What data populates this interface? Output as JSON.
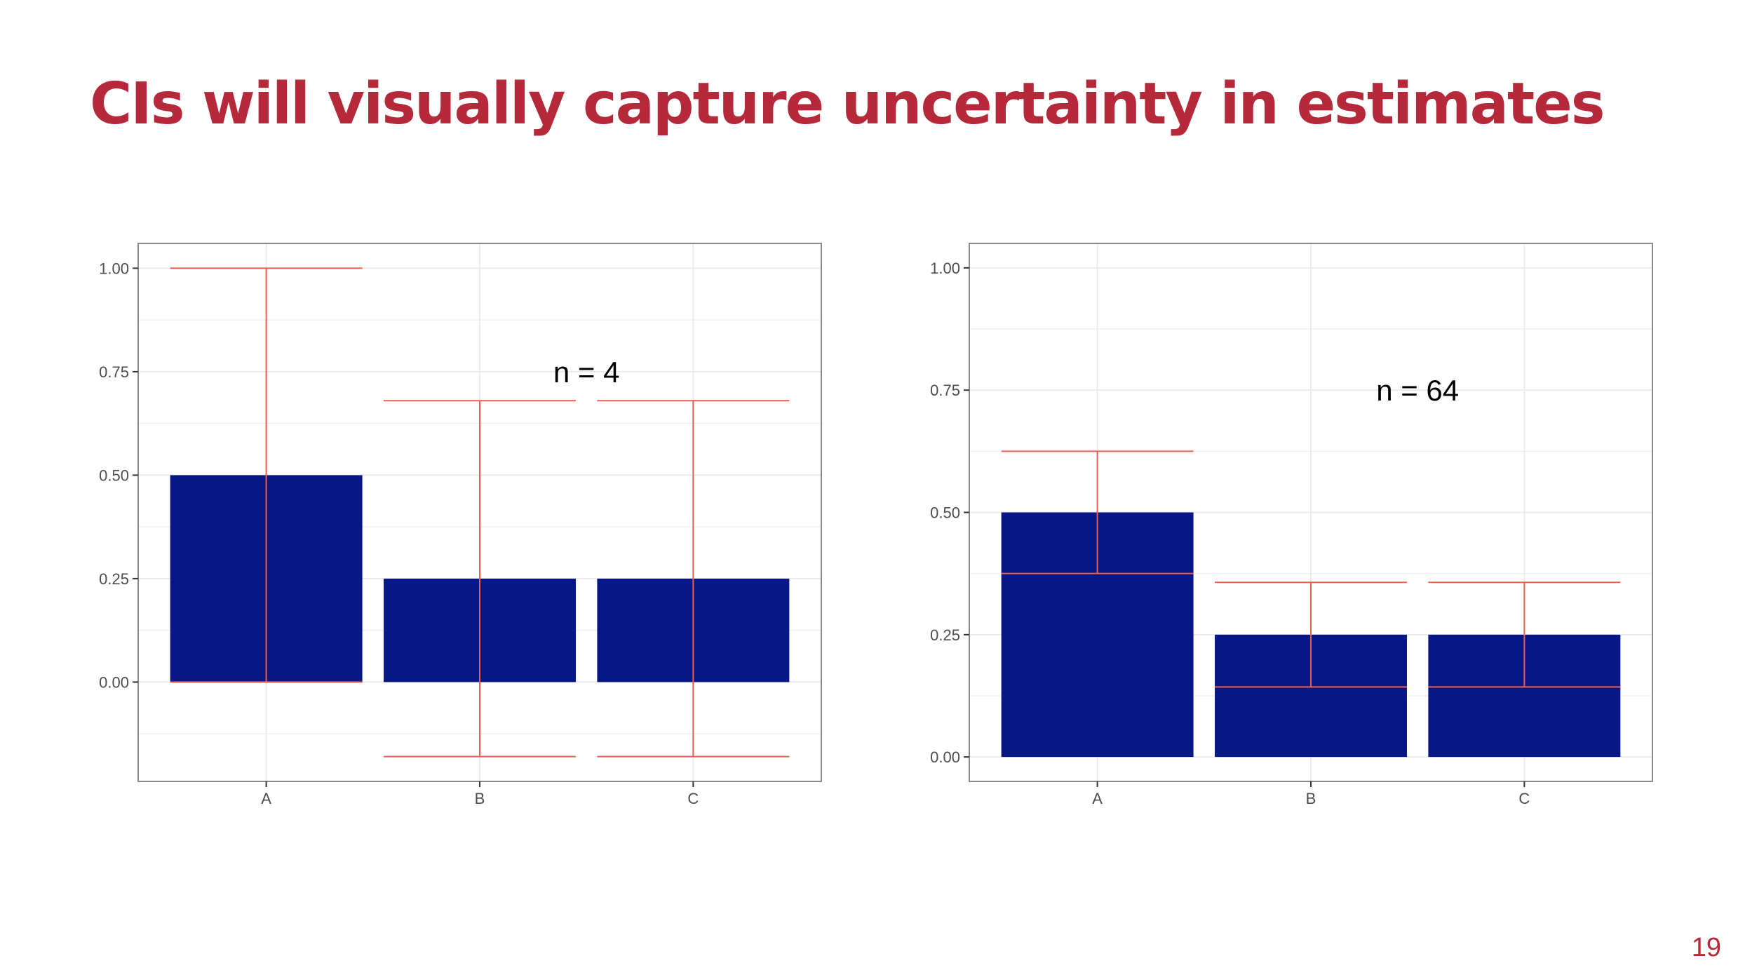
{
  "slide": {
    "title": "CIs will visually capture uncertainty in estimates",
    "page_number": "19"
  },
  "colors": {
    "title": "#b5293a",
    "bar_fill": "#081787",
    "error_bar": "#e8604c",
    "panel_border": "#8a8a8a",
    "grid": "#ebebeb"
  },
  "chart_data": [
    {
      "type": "bar",
      "categories": [
        "A",
        "B",
        "C"
      ],
      "values": [
        0.5,
        0.25,
        0.25
      ],
      "error_bars": {
        "lower": [
          0.0,
          -0.18,
          -0.18
        ],
        "upper": [
          1.0,
          0.68,
          0.68
        ]
      },
      "annotation": "n = 4",
      "annotation_position": {
        "x": 2.5,
        "y": 0.75
      },
      "yticks": [
        0.0,
        0.25,
        0.5,
        0.75,
        1.0
      ],
      "ytick_labels": [
        "0.00",
        "0.25",
        "0.50",
        "0.75",
        "1.00"
      ],
      "ylim": [
        -0.24,
        1.06
      ],
      "grid": true,
      "legend": "none"
    },
    {
      "type": "bar",
      "categories": [
        "A",
        "B",
        "C"
      ],
      "values": [
        0.5,
        0.25,
        0.25
      ],
      "error_bars": {
        "lower": [
          0.375,
          0.143,
          0.143
        ],
        "upper": [
          0.625,
          0.357,
          0.357
        ]
      },
      "annotation": "n = 64",
      "annotation_position": {
        "x": 2.5,
        "y": 0.75
      },
      "yticks": [
        0.0,
        0.25,
        0.5,
        0.75,
        1.0
      ],
      "ytick_labels": [
        "0.00",
        "0.25",
        "0.50",
        "0.75",
        "1.00"
      ],
      "ylim": [
        -0.05,
        1.05
      ],
      "grid": true,
      "legend": "none"
    }
  ]
}
